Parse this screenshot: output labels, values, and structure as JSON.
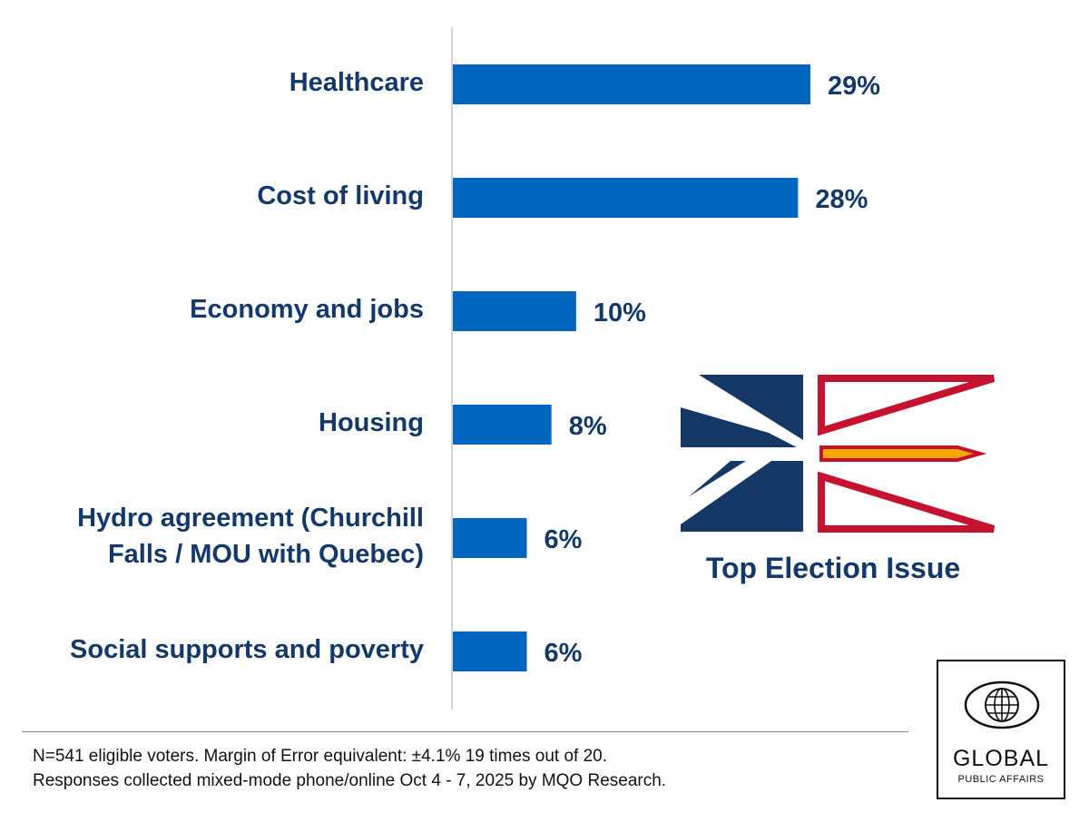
{
  "chart_data": {
    "type": "bar",
    "orientation": "horizontal",
    "categories": [
      "Healthcare",
      "Cost of living",
      "Economy and jobs",
      "Housing",
      "Hydro agreement (Churchill Falls / MOU with Quebec)",
      "Social supports and poverty"
    ],
    "category_lines": [
      [
        "Healthcare"
      ],
      [
        "Cost of living"
      ],
      [
        "Economy and jobs"
      ],
      [
        "Housing"
      ],
      [
        "Hydro agreement (Churchill",
        "Falls / MOU with Quebec)"
      ],
      [
        "Social supports and poverty"
      ]
    ],
    "values": [
      29,
      28,
      10,
      8,
      6,
      6
    ],
    "value_labels": [
      "29%",
      "28%",
      "10%",
      "8%",
      "6%",
      "6%"
    ],
    "xlim": [
      0,
      29
    ],
    "bar_color": "#0066bf",
    "label_color": "#13386a",
    "title": "Top Election Issue",
    "grid": false
  },
  "footnote": {
    "line1": "N=541 eligible voters. Margin of Error equivalent: ±4.1% 19 times out of 20.",
    "line2": "Responses collected mixed-mode phone/online Oct 4 - 7, 2025 by MQO Research."
  },
  "logo": {
    "word": "GLOBAL",
    "sub": "PUBLIC AFFAIRS"
  },
  "colors": {
    "flag_navy": "#163866",
    "flag_red": "#c41230",
    "flag_gold": "#f5a800",
    "text_navy": "#13386a"
  }
}
